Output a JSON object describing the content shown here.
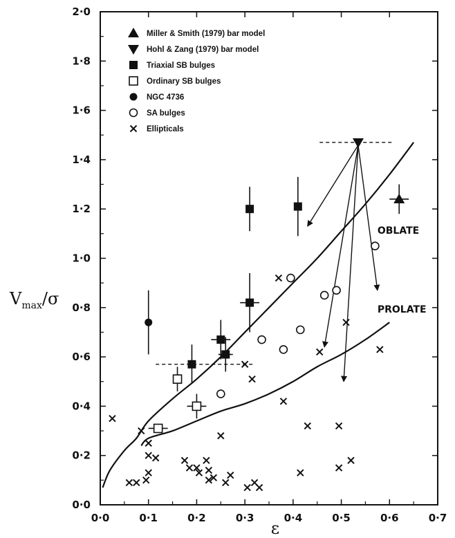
{
  "chart_data": {
    "type": "scatter",
    "xlabel": "ε",
    "ylabel_main": "V",
    "ylabel_sub": "max",
    "ylabel_tail": "/σ",
    "xlim": [
      0.0,
      0.7
    ],
    "ylim": [
      0.0,
      2.0
    ],
    "x_ticks": [
      "0·0",
      "0·1",
      "0·2",
      "0·3",
      "0·4",
      "0·5",
      "0·6",
      "0·7"
    ],
    "y_ticks": [
      "0·0",
      "0·2",
      "0·4",
      "0·6",
      "0·8",
      "1·0",
      "1·2",
      "1·4",
      "1·6",
      "1·8",
      "2·0"
    ],
    "grid": false,
    "legend_position": "top-left",
    "legend": [
      {
        "marker": "triangle-up",
        "label": "Miller & Smith (1979) bar model"
      },
      {
        "marker": "triangle-down",
        "label": "Hohl & Zang (1979) bar model"
      },
      {
        "marker": "filled-square",
        "label": "Triaxial  SB bulges"
      },
      {
        "marker": "open-square",
        "label": "Ordinary  SB bulges"
      },
      {
        "marker": "filled-circle",
        "label": "NGC 4736"
      },
      {
        "marker": "open-circle",
        "label": "SA bulges"
      },
      {
        "marker": "cross",
        "label": "Ellipticals"
      }
    ],
    "curves": [
      {
        "label": "OBLATE",
        "points": [
          [
            0.005,
            0.07
          ],
          [
            0.02,
            0.14
          ],
          [
            0.05,
            0.22
          ],
          [
            0.075,
            0.27
          ],
          [
            0.1,
            0.34
          ],
          [
            0.15,
            0.43
          ],
          [
            0.2,
            0.51
          ],
          [
            0.25,
            0.6
          ],
          [
            0.3,
            0.7
          ],
          [
            0.35,
            0.8
          ],
          [
            0.4,
            0.9
          ],
          [
            0.45,
            1.0
          ],
          [
            0.5,
            1.11
          ],
          [
            0.55,
            1.22
          ],
          [
            0.6,
            1.34
          ],
          [
            0.65,
            1.47
          ]
        ]
      },
      {
        "label": "PROLATE",
        "points": [
          [
            0.085,
            0.24
          ],
          [
            0.1,
            0.27
          ],
          [
            0.15,
            0.3
          ],
          [
            0.2,
            0.34
          ],
          [
            0.25,
            0.38
          ],
          [
            0.3,
            0.41
          ],
          [
            0.35,
            0.45
          ],
          [
            0.4,
            0.5
          ],
          [
            0.45,
            0.56
          ],
          [
            0.5,
            0.61
          ],
          [
            0.55,
            0.67
          ],
          [
            0.6,
            0.74
          ]
        ]
      }
    ],
    "series": [
      {
        "name": "Miller & Smith (1979) bar model",
        "marker": "triangle-up",
        "points": [
          {
            "x": 0.62,
            "y": 1.24,
            "xerr": 0.02,
            "yerr": 0.06
          }
        ]
      },
      {
        "name": "Hohl & Zang (1979) bar model",
        "marker": "triangle-down",
        "points": [
          {
            "x": 0.535,
            "y": 1.47
          }
        ]
      },
      {
        "name": "Triaxial  SB bulges",
        "marker": "filled-square",
        "points": [
          {
            "x": 0.19,
            "y": 0.57,
            "yerr": 0.08
          },
          {
            "x": 0.25,
            "y": 0.67,
            "xerr": 0.02,
            "yerr": 0.08
          },
          {
            "x": 0.26,
            "y": 0.61,
            "xerr": 0.015,
            "yerr": 0.07
          },
          {
            "x": 0.31,
            "y": 0.82,
            "xerr": 0.02,
            "yerr": 0.12
          },
          {
            "x": 0.31,
            "y": 1.2,
            "yerr": 0.09
          },
          {
            "x": 0.41,
            "y": 1.21,
            "yerr": 0.12
          }
        ]
      },
      {
        "name": "Ordinary  SB bulges",
        "marker": "open-square",
        "points": [
          {
            "x": 0.12,
            "y": 0.31,
            "xerr": 0.02
          },
          {
            "x": 0.16,
            "y": 0.51,
            "yerr": 0.05
          },
          {
            "x": 0.2,
            "y": 0.4,
            "xerr": 0.02,
            "yerr": 0.05
          }
        ]
      },
      {
        "name": "NGC 4736",
        "marker": "filled-circle",
        "points": [
          {
            "x": 0.1,
            "y": 0.74,
            "yerr": 0.13
          }
        ]
      },
      {
        "name": "SA bulges",
        "marker": "open-circle",
        "points": [
          {
            "x": 0.25,
            "y": 0.45
          },
          {
            "x": 0.335,
            "y": 0.67
          },
          {
            "x": 0.38,
            "y": 0.63
          },
          {
            "x": 0.395,
            "y": 0.92
          },
          {
            "x": 0.415,
            "y": 0.71
          },
          {
            "x": 0.465,
            "y": 0.85
          },
          {
            "x": 0.49,
            "y": 0.87
          },
          {
            "x": 0.57,
            "y": 1.05
          }
        ]
      },
      {
        "name": "Ellipticals",
        "marker": "cross",
        "points": [
          {
            "x": 0.025,
            "y": 0.35
          },
          {
            "x": 0.06,
            "y": 0.09
          },
          {
            "x": 0.075,
            "y": 0.09
          },
          {
            "x": 0.085,
            "y": 0.3
          },
          {
            "x": 0.095,
            "y": 0.1
          },
          {
            "x": 0.1,
            "y": 0.25
          },
          {
            "x": 0.1,
            "y": 0.2
          },
          {
            "x": 0.1,
            "y": 0.13
          },
          {
            "x": 0.115,
            "y": 0.19
          },
          {
            "x": 0.175,
            "y": 0.18
          },
          {
            "x": 0.185,
            "y": 0.15
          },
          {
            "x": 0.2,
            "y": 0.15
          },
          {
            "x": 0.205,
            "y": 0.13
          },
          {
            "x": 0.22,
            "y": 0.18
          },
          {
            "x": 0.225,
            "y": 0.14
          },
          {
            "x": 0.225,
            "y": 0.1
          },
          {
            "x": 0.235,
            "y": 0.11
          },
          {
            "x": 0.25,
            "y": 0.28
          },
          {
            "x": 0.26,
            "y": 0.09
          },
          {
            "x": 0.27,
            "y": 0.12
          },
          {
            "x": 0.3,
            "y": 0.57
          },
          {
            "x": 0.305,
            "y": 0.07
          },
          {
            "x": 0.315,
            "y": 0.51
          },
          {
            "x": 0.32,
            "y": 0.09
          },
          {
            "x": 0.33,
            "y": 0.07
          },
          {
            "x": 0.37,
            "y": 0.92
          },
          {
            "x": 0.38,
            "y": 0.42
          },
          {
            "x": 0.415,
            "y": 0.13
          },
          {
            "x": 0.43,
            "y": 0.32
          },
          {
            "x": 0.455,
            "y": 0.62
          },
          {
            "x": 0.495,
            "y": 0.32
          },
          {
            "x": 0.495,
            "y": 0.15
          },
          {
            "x": 0.51,
            "y": 0.74
          },
          {
            "x": 0.52,
            "y": 0.18
          },
          {
            "x": 0.58,
            "y": 0.63
          }
        ]
      }
    ],
    "annotations": [
      {
        "type": "dashed-line",
        "x0": 0.115,
        "x1": 0.32,
        "y": 0.57
      },
      {
        "type": "dashed-line",
        "x0": 0.455,
        "x1": 0.605,
        "y": 1.47
      },
      {
        "type": "arrow",
        "from": [
          0.535,
          1.47
        ],
        "to": [
          0.43,
          1.13
        ]
      },
      {
        "type": "arrow",
        "from": [
          0.535,
          1.47
        ],
        "to": [
          0.465,
          0.64
        ]
      },
      {
        "type": "arrow",
        "from": [
          0.535,
          1.47
        ],
        "to": [
          0.505,
          0.5
        ]
      },
      {
        "type": "arrow",
        "from": [
          0.535,
          1.47
        ],
        "to": [
          0.575,
          0.87
        ]
      }
    ]
  }
}
